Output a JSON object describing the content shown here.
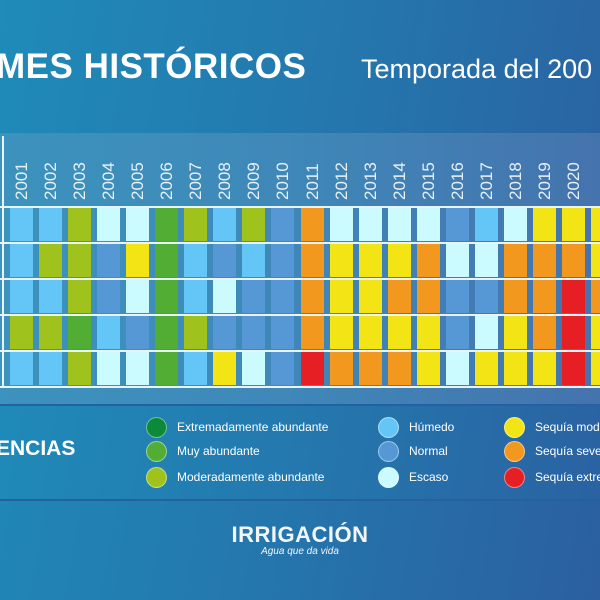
{
  "header": {
    "title": "MES HISTÓRICOS",
    "subtitle": "Temporada del 200"
  },
  "legend": {
    "title": "ENCIAS",
    "items": [
      {
        "key": "ext_abund",
        "label": "Extremadamente abundante",
        "color": "#0b8a3a"
      },
      {
        "key": "muy_abund",
        "label": "Muy abundante",
        "color": "#52ad35"
      },
      {
        "key": "mod_abund",
        "label": "Moderadamente abundante",
        "color": "#9fc31c"
      },
      {
        "key": "humedo",
        "label": "Húmedo",
        "color": "#63c6f7"
      },
      {
        "key": "normal",
        "label": "Normal",
        "color": "#5698d6"
      },
      {
        "key": "escaso",
        "label": "Escaso",
        "color": "#ccfbff"
      },
      {
        "key": "seq_mod",
        "label": "Sequía mode",
        "color": "#f3e515"
      },
      {
        "key": "seq_sev",
        "label": "Sequía sever",
        "color": "#f3981e"
      },
      {
        "key": "seq_ext",
        "label": "Sequía extre",
        "color": "#e51f23"
      }
    ]
  },
  "logo": {
    "name": "IRRIGACIÓN",
    "tagline": "Agua que da vida"
  },
  "chart_data": {
    "type": "heatmap",
    "title": "MES HISTÓRICOS",
    "subtitle": "Temporada del 200",
    "x": [
      "2001",
      "2002",
      "2003",
      "2004",
      "2005",
      "2006",
      "2007",
      "2008",
      "2009",
      "2010",
      "2011",
      "2012",
      "2013",
      "2014",
      "2015",
      "2016",
      "2017",
      "2018",
      "2019",
      "2020",
      ""
    ],
    "rows": 5,
    "categories_legend": [
      "Extremadamente abundante",
      "Muy abundante",
      "Moderadamente abundante",
      "Húmedo",
      "Normal",
      "Escaso",
      "Sequía moderada",
      "Sequía severa",
      "Sequía extrema"
    ],
    "values": [
      [
        "humedo",
        "humedo",
        "mod_abund",
        "escaso",
        "escaso",
        "muy_abund",
        "mod_abund",
        "humedo",
        "mod_abund",
        "normal",
        "seq_sev",
        "escaso",
        "escaso",
        "escaso",
        "escaso",
        "normal",
        "humedo",
        "escaso",
        "seq_mod",
        "seq_mod",
        "seq_mod"
      ],
      [
        "humedo",
        "mod_abund",
        "mod_abund",
        "normal",
        "seq_mod",
        "muy_abund",
        "humedo",
        "normal",
        "humedo",
        "normal",
        "seq_sev",
        "seq_mod",
        "seq_mod",
        "seq_mod",
        "seq_sev",
        "escaso",
        "escaso",
        "seq_sev",
        "seq_sev",
        "seq_sev",
        "seq_mod"
      ],
      [
        "humedo",
        "humedo",
        "mod_abund",
        "normal",
        "escaso",
        "muy_abund",
        "humedo",
        "escaso",
        "normal",
        "normal",
        "seq_sev",
        "seq_mod",
        "seq_mod",
        "seq_sev",
        "seq_sev",
        "normal",
        "normal",
        "seq_sev",
        "seq_sev",
        "seq_ext",
        "seq_sev"
      ],
      [
        "mod_abund",
        "mod_abund",
        "muy_abund",
        "humedo",
        "normal",
        "muy_abund",
        "mod_abund",
        "normal",
        "normal",
        "normal",
        "seq_sev",
        "seq_mod",
        "seq_mod",
        "seq_mod",
        "seq_mod",
        "normal",
        "escaso",
        "seq_mod",
        "seq_sev",
        "seq_ext",
        "seq_mod"
      ],
      [
        "humedo",
        "humedo",
        "mod_abund",
        "escaso",
        "escaso",
        "muy_abund",
        "humedo",
        "seq_mod",
        "escaso",
        "normal",
        "seq_ext",
        "seq_sev",
        "seq_sev",
        "seq_sev",
        "seq_mod",
        "escaso",
        "seq_mod",
        "seq_mod",
        "seq_mod",
        "seq_ext",
        "seq_mod"
      ]
    ]
  }
}
